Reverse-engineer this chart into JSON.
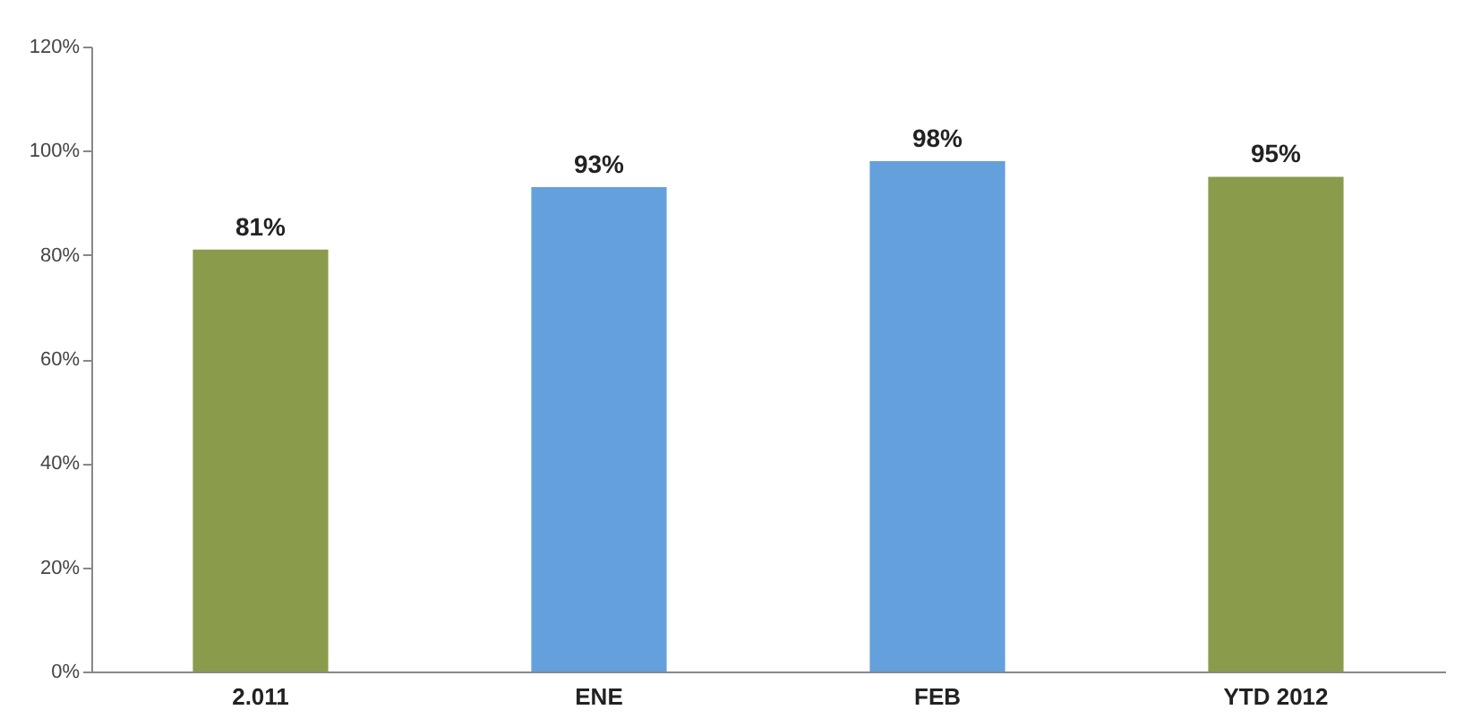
{
  "chart_data": {
    "type": "bar",
    "categories": [
      "2.011",
      "ENE",
      "FEB",
      "YTD 2012"
    ],
    "values": [
      81,
      93,
      98,
      95
    ],
    "colors": [
      "#8a9c4c",
      "#64a0dc",
      "#64a0dc",
      "#8a9c4c"
    ],
    "value_labels": [
      "81%",
      "93%",
      "98%",
      "95%"
    ],
    "ylim": [
      0,
      120
    ],
    "yticks": [
      {
        "value": 0,
        "label": "0%"
      },
      {
        "value": 20,
        "label": "20%"
      },
      {
        "value": 40,
        "label": "40%"
      },
      {
        "value": 60,
        "label": "60%"
      },
      {
        "value": 80,
        "label": "80%"
      },
      {
        "value": 100,
        "label": "100%"
      },
      {
        "value": 120,
        "label": "120%"
      }
    ],
    "grid": false
  }
}
